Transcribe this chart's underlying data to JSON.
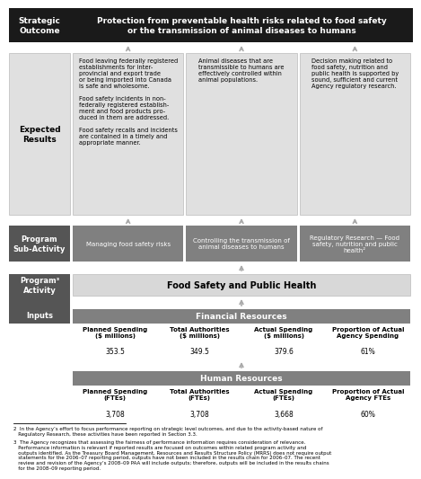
{
  "title_left": "Strategic\nOutcome",
  "title_right": "Protection from preventable health risks related to food safety\nor the transmission of animal diseases to humans",
  "expected_label": "Expected\nResults",
  "expected_col1": "Food leaving federally registered\nestablishments for inter-\nprovincial and export trade\nor being imported into Canada\nis safe and wholesome.\n\nFood safety incidents in non-\nfederally registered establish-\nment and food products pro-\nduced in them are addressed.\n\nFood safety recalls and incidents\nare contained in a timely and\nappropriate manner.",
  "expected_col2": "Animal diseases that are\ntransmissible to humans are\neffectively controlled within\nanimal populations.",
  "expected_col3": "Decision making related to\nfood safety, nutrition and\npublic health is supported by\nsound, sufficient and current\nAgency regulatory research.",
  "sub_label": "Program\nSub-Activity",
  "sub_col1": "Managing food safety risks",
  "sub_col2": "Controlling the transmission of\nanimal diseases to humans",
  "sub_col3": "Regulatory Research — Food\nsafety, nutrition and public\nhealth²",
  "program_label": "Program³\nActivity",
  "program_activity": "Food Safety and Public Health",
  "inputs_label": "Inputs",
  "financial_header": "Financial Resources",
  "fin_col1_label": "Planned Spending\n($ millions)",
  "fin_col1_value": "353.5",
  "fin_col2_label": "Total Authorities\n($ millions)",
  "fin_col2_value": "349.5",
  "fin_col3_label": "Actual Spending\n($ millions)",
  "fin_col3_value": "379.6",
  "fin_col4_label": "Proportion of Actual\nAgency Spending",
  "fin_col4_value": "61%",
  "human_header": "Human Resources",
  "hr_col1_label": "Planned Spending\n(FTEs)",
  "hr_col1_value": "3,708",
  "hr_col2_label": "Total Authorities\n(FTEs)",
  "hr_col2_value": "3,708",
  "hr_col3_label": "Actual Spending\n(FTEs)",
  "hr_col3_value": "3,668",
  "hr_col4_label": "Proportion of Actual\nAgency FTEs",
  "hr_col4_value": "60%",
  "footnote2": "2  In the Agency’s effort to focus performance reporting on strategic level outcomes, and due to the activity-based nature of\n   Regulatory Research, these activities have been reported in Section 3.3.",
  "footnote3": "3  The Agency recognizes that assessing the fairness of performance information requires consideration of relevance.\n   Performance information is relevant if reported results are focused on outcomes within related program activity and\n   outputs identified. As the Treasury Board Management, Resources and Results Structure Policy (MRRS) does not require output\n   statements for the 2006–07 reporting period, outputs have not been included in the results chain for 2006–07. The recent\n   review and revision of the Agency’s 2008–09 PAA will include outputs; therefore, outputs will be included in the results chains\n   for the 2008–09 reporting period."
}
